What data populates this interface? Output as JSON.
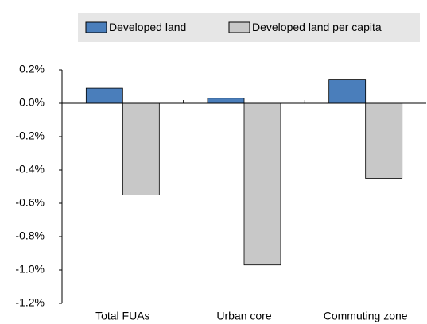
{
  "chart_data": {
    "type": "bar",
    "categories": [
      "Total FUAs",
      "Urban core",
      "Commuting zone"
    ],
    "series": [
      {
        "name": "Developed land",
        "color": "#4a7ebb",
        "values": [
          0.09,
          0.03,
          0.14
        ]
      },
      {
        "name": "Developed land per capita",
        "color": "#c8c8c8",
        "values": [
          -0.55,
          -0.97,
          -0.45
        ]
      }
    ],
    "ylim": [
      -1.2,
      0.2
    ],
    "yticks": [
      {
        "value": 0.2,
        "label": "0.2%"
      },
      {
        "value": 0.0,
        "label": "0.0%"
      },
      {
        "value": -0.2,
        "label": "-0.2%"
      },
      {
        "value": -0.4,
        "label": "-0.4%"
      },
      {
        "value": -0.6,
        "label": "-0.6%"
      },
      {
        "value": -0.8,
        "label": "-0.8%"
      },
      {
        "value": -1.0,
        "label": "-1.0%"
      },
      {
        "value": -1.2,
        "label": "-1.2%"
      }
    ],
    "grid": false,
    "legend": "top"
  }
}
